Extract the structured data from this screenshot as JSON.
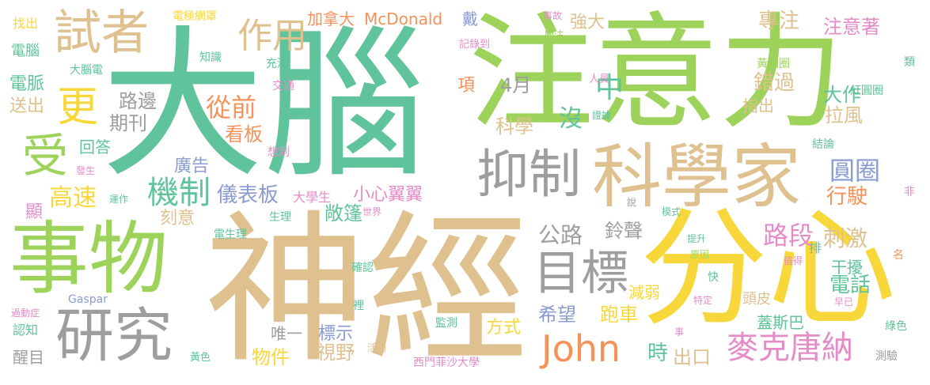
{
  "palette": {
    "teal": "#5fc39b",
    "green": "#9ed35b",
    "yellow": "#f8d73a",
    "tan": "#dfc08f",
    "gray": "#9e9e9e",
    "orange": "#f59259",
    "blue": "#8a9bd1",
    "pink": "#e58cc8"
  },
  "words": [
    {
      "text": "大腦",
      "color": "teal"
    },
    {
      "text": "注意力",
      "color": "green"
    },
    {
      "text": "神經",
      "color": "tan"
    },
    {
      "text": "分心",
      "color": "yellow"
    },
    {
      "text": "事物",
      "color": "green"
    },
    {
      "text": "科學家",
      "color": "tan"
    },
    {
      "text": "抑制",
      "color": "gray"
    },
    {
      "text": "研究",
      "color": "gray"
    },
    {
      "text": "John",
      "color": "orange"
    },
    {
      "text": "試者",
      "color": "tan"
    },
    {
      "text": "目標",
      "color": "gray"
    },
    {
      "text": "麥克唐納",
      "color": "pink"
    },
    {
      "text": "更",
      "color": "yellow"
    },
    {
      "text": "受",
      "color": "green"
    },
    {
      "text": "作用",
      "color": "tan"
    },
    {
      "text": "機制",
      "color": "teal"
    },
    {
      "text": "圓圈",
      "color": "blue"
    },
    {
      "text": "路段",
      "color": "pink"
    },
    {
      "text": "從前",
      "color": "orange"
    },
    {
      "text": "高速",
      "color": "yellow"
    },
    {
      "text": "小心翼翼",
      "color": "pink"
    },
    {
      "text": "儀表板",
      "color": "blue"
    },
    {
      "text": "敞篷",
      "color": "teal"
    },
    {
      "text": "公路",
      "color": "gray"
    },
    {
      "text": "鈴聲",
      "color": "gray"
    },
    {
      "text": "希望",
      "color": "blue"
    },
    {
      "text": "跑車",
      "color": "yellow"
    },
    {
      "text": "中",
      "color": "teal"
    },
    {
      "text": "沒",
      "color": "teal"
    },
    {
      "text": "科學",
      "color": "tan"
    },
    {
      "text": "4月",
      "color": "gray"
    },
    {
      "text": "專注",
      "color": "tan"
    },
    {
      "text": "注意著",
      "color": "pink"
    },
    {
      "text": "強大",
      "color": "tan"
    },
    {
      "text": "錯過",
      "color": "tan"
    },
    {
      "text": "大作",
      "color": "teal"
    },
    {
      "text": "指出",
      "color": "tan"
    },
    {
      "text": "拉風",
      "color": "tan"
    },
    {
      "text": "行駛",
      "color": "orange"
    },
    {
      "text": "刺激",
      "color": "tan"
    },
    {
      "text": "干擾",
      "color": "teal"
    },
    {
      "text": "電話",
      "color": "teal"
    },
    {
      "text": "減弱",
      "color": "yellow"
    },
    {
      "text": "標示",
      "color": "blue"
    },
    {
      "text": "視野",
      "color": "tan"
    },
    {
      "text": "方式",
      "color": "yellow"
    },
    {
      "text": "時",
      "color": "teal"
    },
    {
      "text": "出口",
      "color": "tan"
    },
    {
      "text": "物件",
      "color": "yellow"
    },
    {
      "text": "唯一",
      "color": "gray"
    },
    {
      "text": "看板",
      "color": "orange"
    },
    {
      "text": "期刊",
      "color": "gray"
    },
    {
      "text": "路邊",
      "color": "gray"
    },
    {
      "text": "回答",
      "color": "teal"
    },
    {
      "text": "廣告",
      "color": "blue"
    },
    {
      "text": "刻意",
      "color": "tan"
    },
    {
      "text": "加拿大",
      "color": "orange"
    },
    {
      "text": "McDonald",
      "color": "orange"
    },
    {
      "text": "頭皮",
      "color": "tan"
    },
    {
      "text": "蓋斯巴",
      "color": "teal"
    },
    {
      "text": "大學生",
      "color": "pink"
    },
    {
      "text": "電脈",
      "color": "teal"
    },
    {
      "text": "送出",
      "color": "tan"
    },
    {
      "text": "顯",
      "color": "pink"
    },
    {
      "text": "找出",
      "color": "yellow"
    },
    {
      "text": "電腦",
      "color": "teal"
    },
    {
      "text": "大腦電",
      "color": "teal"
    },
    {
      "text": "電極網罩",
      "color": "yellow"
    },
    {
      "text": "知識",
      "color": "teal"
    },
    {
      "text": "充滿",
      "color": "teal"
    },
    {
      "text": "交通",
      "color": "pink"
    },
    {
      "text": "戴",
      "color": "blue"
    },
    {
      "text": "記錄到",
      "color": "pink"
    },
    {
      "text": "事故",
      "color": "pink"
    },
    {
      "text": "關注",
      "color": "green"
    },
    {
      "text": "人員",
      "color": "pink"
    },
    {
      "text": "證據",
      "color": "teal"
    },
    {
      "text": "黃圓圈",
      "color": "green"
    },
    {
      "text": "紅圓圈",
      "color": "teal"
    },
    {
      "text": "類",
      "color": "teal"
    },
    {
      "text": "結論",
      "color": "teal"
    },
    {
      "text": "非",
      "color": "pink"
    },
    {
      "text": "名",
      "color": "orange"
    },
    {
      "text": "綠色",
      "color": "teal"
    },
    {
      "text": "測驗",
      "color": "gray"
    },
    {
      "text": "早已",
      "color": "pink"
    },
    {
      "text": "值得",
      "color": "pink"
    },
    {
      "text": "排",
      "color": "teal"
    },
    {
      "text": "原因",
      "color": "green"
    },
    {
      "text": "提升",
      "color": "teal"
    },
    {
      "text": "快",
      "color": "teal"
    },
    {
      "text": "特定",
      "color": "pink"
    },
    {
      "text": "模式",
      "color": "teal"
    },
    {
      "text": "說",
      "color": "gray"
    },
    {
      "text": "事",
      "color": "pink"
    },
    {
      "text": "監測",
      "color": "teal"
    },
    {
      "text": "西門菲沙大學",
      "color": "pink"
    },
    {
      "text": "活動",
      "color": "tan"
    },
    {
      "text": "裡",
      "color": "teal"
    },
    {
      "text": "確認",
      "color": "teal"
    },
    {
      "text": "世界",
      "color": "pink"
    },
    {
      "text": "生理",
      "color": "teal"
    },
    {
      "text": "電生理",
      "color": "teal"
    },
    {
      "text": "想到",
      "color": "pink"
    },
    {
      "text": "項",
      "color": "orange"
    },
    {
      "text": "運作",
      "color": "teal"
    },
    {
      "text": "發生",
      "color": "pink"
    },
    {
      "text": "Gaspar",
      "color": "blue"
    },
    {
      "text": "過動症",
      "color": "pink"
    },
    {
      "text": "認知",
      "color": "teal"
    },
    {
      "text": "醒目",
      "color": "gray"
    },
    {
      "text": "黃色",
      "color": "teal"
    }
  ]
}
